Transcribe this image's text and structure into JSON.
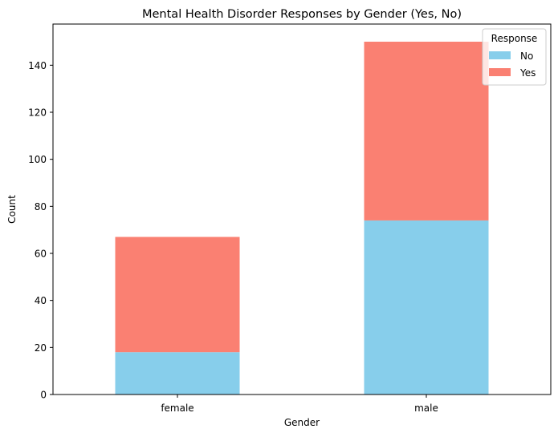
{
  "chart_data": {
    "type": "bar",
    "stacked": true,
    "title": "Mental Health Disorder Responses by Gender (Yes, No)",
    "xlabel": "Gender",
    "ylabel": "Count",
    "categories": [
      "female",
      "male"
    ],
    "series": [
      {
        "name": "No",
        "color": "#87CEEB",
        "values": [
          18,
          74
        ]
      },
      {
        "name": "Yes",
        "color": "#FA8072",
        "values": [
          49,
          76
        ]
      }
    ],
    "ylim": [
      0,
      157.5
    ],
    "yticks": [
      0,
      20,
      40,
      60,
      80,
      100,
      120,
      140
    ],
    "grid": false,
    "legend": {
      "title": "Response",
      "placement": "top-right"
    }
  }
}
